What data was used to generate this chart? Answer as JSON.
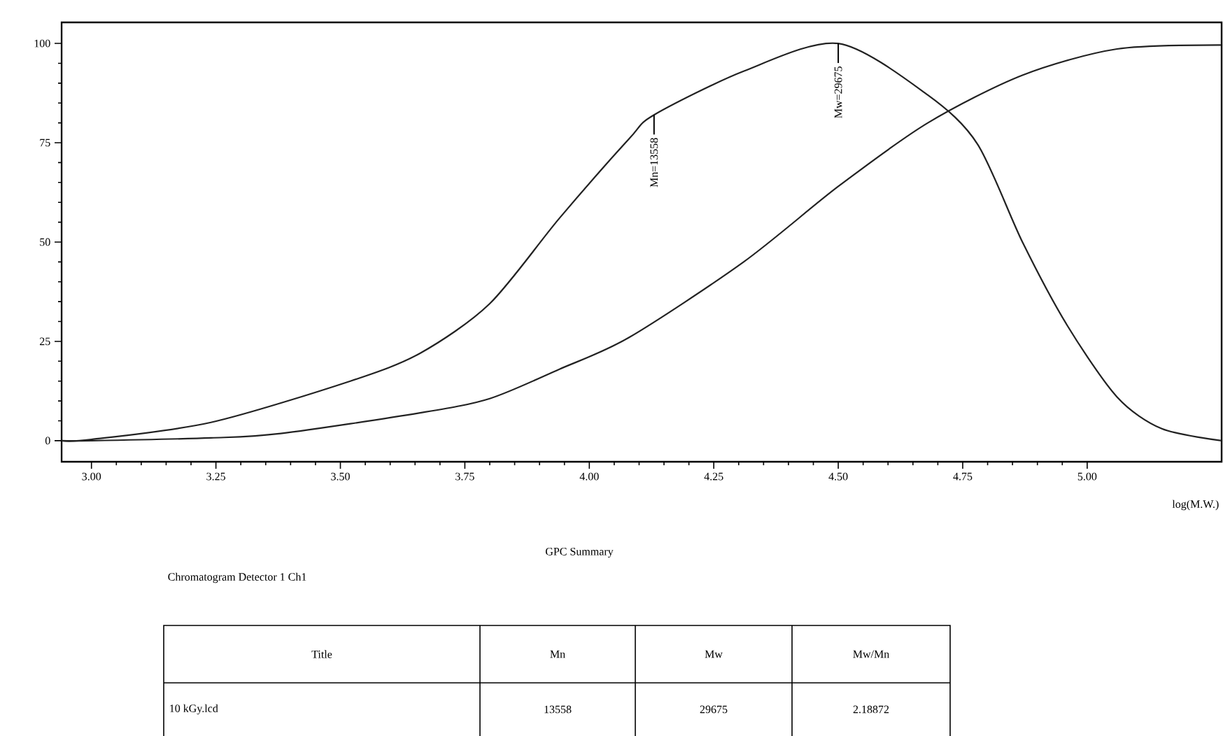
{
  "chart_data": {
    "type": "line",
    "xlabel": "log(M.W.)",
    "xlim": [
      2.94,
      5.27
    ],
    "ylim": [
      -5.3,
      105.3
    ],
    "xticks": [
      {
        "value": 3,
        "label": "3.00"
      },
      {
        "value": 3.25,
        "label": "3.25"
      },
      {
        "value": 3.5,
        "label": "3.50"
      },
      {
        "value": 3.75,
        "label": "3.75"
      },
      {
        "value": 4,
        "label": "4.00"
      },
      {
        "value": 4.25,
        "label": "4.25"
      },
      {
        "value": 4.5,
        "label": "4.50"
      },
      {
        "value": 4.75,
        "label": "4.75"
      },
      {
        "value": 5,
        "label": "5.00"
      }
    ],
    "yticks": [
      0,
      25,
      50,
      75,
      100
    ],
    "marker": "none",
    "series": [
      {
        "color": "#222222",
        "x": [
          2.94,
          3.0,
          3.24,
          3.52,
          3.66,
          3.8,
          3.94,
          4.08,
          4.13,
          4.31,
          4.5,
          4.68,
          4.78,
          4.87,
          4.96,
          5.06,
          5.15,
          5.27
        ],
        "values": [
          0,
          0.3,
          4.6,
          15,
          22,
          34.5,
          56,
          76,
          82,
          93,
          100,
          87,
          74.6,
          50,
          29,
          11,
          3,
          0
        ]
      },
      {
        "color": "#222222",
        "x": [
          2.94,
          3.0,
          3.24,
          3.38,
          3.66,
          3.8,
          3.94,
          4.08,
          4.31,
          4.5,
          4.68,
          4.87,
          5.06,
          5.27
        ],
        "values": [
          0,
          0,
          0.7,
          1.8,
          7,
          10.6,
          18,
          26,
          45,
          64,
          80,
          92,
          98.6,
          99.6
        ]
      }
    ],
    "annotations": [
      {
        "text": "Mn=13558",
        "x": 4.13,
        "y": 82
      },
      {
        "text": "Mw=29675",
        "x": 4.5,
        "y": 100
      },
      "GPC Summary",
      "Chromatogram Detector 1 Ch1",
      "Title",
      "Mn",
      "Mw",
      "Mw/Mn",
      "10 kGy.lcd",
      "13558",
      "29675",
      "2.18872"
    ]
  }
}
